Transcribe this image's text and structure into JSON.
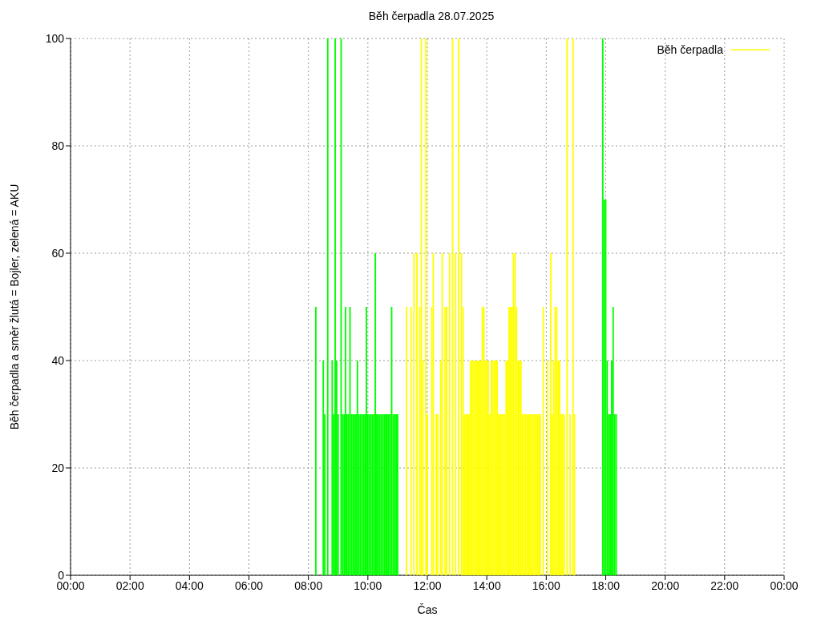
{
  "chart_data": {
    "type": "bar",
    "title": "Běh čerpadla 28.07.2025",
    "xlabel": "Čas",
    "ylabel": "Běh čerpadla a směr žlutá = Bojler, zelená = AKU",
    "xlim": [
      0,
      24
    ],
    "xticks": [
      {
        "value": 0,
        "label": "00:00"
      },
      {
        "value": 2,
        "label": "02:00"
      },
      {
        "value": 4,
        "label": "04:00"
      },
      {
        "value": 6,
        "label": "06:00"
      },
      {
        "value": 8,
        "label": "08:00"
      },
      {
        "value": 10,
        "label": "10:00"
      },
      {
        "value": 12,
        "label": "12:00"
      },
      {
        "value": 14,
        "label": "14:00"
      },
      {
        "value": 16,
        "label": "16:00"
      },
      {
        "value": 18,
        "label": "18:00"
      },
      {
        "value": 20,
        "label": "20:00"
      },
      {
        "value": 22,
        "label": "22:00"
      },
      {
        "value": 24,
        "label": "00:00"
      }
    ],
    "ylim": [
      0,
      100
    ],
    "yticks": [
      0,
      20,
      40,
      60,
      80,
      100
    ],
    "grid": true,
    "legend": "top right",
    "series": [
      {
        "name": "Běh čerpadla",
        "color": "#ffff00",
        "x": [
          8.25,
          8.5,
          8.55,
          8.65,
          8.8,
          8.85,
          8.9,
          8.95,
          9,
          9.1,
          9.15,
          9.2,
          9.25,
          9.3,
          9.35,
          9.4,
          9.45,
          9.5,
          9.55,
          9.6,
          9.65,
          9.7,
          9.75,
          9.8,
          9.85,
          9.9,
          9.95,
          10,
          10.05,
          10.1,
          10.15,
          10.2,
          10.25,
          10.3,
          10.35,
          10.4,
          10.45,
          10.5,
          10.55,
          10.6,
          10.65,
          10.7,
          10.75,
          10.8,
          10.85,
          10.9,
          10.95,
          11,
          11.3,
          11.45,
          11.55,
          11.65,
          11.75,
          11.8,
          11.85,
          11.95,
          12,
          12.15,
          12.2,
          12.3,
          12.35,
          12.45,
          12.5,
          12.6,
          12.65,
          12.75,
          12.85,
          12.95,
          13.05,
          13.15,
          13.2,
          13.25,
          13.3,
          13.35,
          13.4,
          13.45,
          13.5,
          13.55,
          13.6,
          13.65,
          13.7,
          13.75,
          13.8,
          13.85,
          13.9,
          13.95,
          14,
          14.05,
          14.1,
          14.15,
          14.2,
          14.25,
          14.3,
          14.35,
          14.4,
          14.45,
          14.5,
          14.55,
          14.6,
          14.65,
          14.7,
          14.75,
          14.8,
          14.85,
          14.9,
          14.95,
          15,
          15.05,
          15.1,
          15.15,
          15.2,
          15.25,
          15.3,
          15.35,
          15.4,
          15.45,
          15.5,
          15.55,
          15.6,
          15.65,
          15.7,
          15.75,
          15.8,
          15.9,
          16.05,
          16.15,
          16.2,
          16.25,
          16.3,
          16.35,
          16.4,
          16.45,
          16.5,
          16.55,
          16.6,
          16.7,
          16.8,
          16.9,
          16.95,
          17.9,
          17.95,
          18,
          18.05,
          18.1,
          18.15,
          18.2,
          18.25,
          18.3,
          18.35
        ],
        "values": [
          50,
          40,
          30,
          100,
          40,
          30,
          100,
          40,
          30,
          100,
          30,
          30,
          50,
          30,
          30,
          50,
          30,
          30,
          30,
          30,
          40,
          30,
          30,
          30,
          30,
          30,
          50,
          30,
          30,
          30,
          30,
          30,
          60,
          30,
          30,
          30,
          30,
          30,
          30,
          30,
          30,
          30,
          30,
          50,
          30,
          30,
          30,
          30,
          50,
          50,
          60,
          60,
          50,
          100,
          40,
          100,
          30,
          50,
          60,
          30,
          30,
          40,
          60,
          50,
          50,
          60,
          100,
          60,
          100,
          60,
          50,
          30,
          30,
          30,
          30,
          40,
          40,
          40,
          40,
          40,
          40,
          40,
          40,
          50,
          50,
          40,
          40,
          40,
          30,
          40,
          40,
          40,
          40,
          40,
          30,
          30,
          30,
          30,
          30,
          40,
          40,
          50,
          50,
          50,
          60,
          60,
          50,
          40,
          40,
          40,
          30,
          30,
          30,
          30,
          30,
          30,
          30,
          30,
          30,
          30,
          30,
          30,
          30,
          50,
          40,
          60,
          30,
          40,
          50,
          50,
          40,
          40,
          30,
          30,
          30,
          100,
          30,
          100,
          30,
          100,
          70,
          70,
          40,
          30,
          30,
          40,
          50,
          30,
          30
        ],
        "colors": [
          "#00ff00",
          "#00ff00",
          "#00ff00",
          "#00ff00",
          "#00ff00",
          "#00ff00",
          "#00ff00",
          "#00ff00",
          "#00ff00",
          "#00ff00",
          "#00ff00",
          "#00ff00",
          "#00ff00",
          "#00ff00",
          "#00ff00",
          "#00ff00",
          "#00ff00",
          "#00ff00",
          "#00ff00",
          "#00ff00",
          "#00ff00",
          "#00ff00",
          "#00ff00",
          "#00ff00",
          "#00ff00",
          "#00ff00",
          "#00ff00",
          "#00ff00",
          "#00ff00",
          "#00ff00",
          "#00ff00",
          "#00ff00",
          "#00ff00",
          "#00ff00",
          "#00ff00",
          "#00ff00",
          "#00ff00",
          "#00ff00",
          "#00ff00",
          "#00ff00",
          "#00ff00",
          "#00ff00",
          "#00ff00",
          "#00ff00",
          "#00ff00",
          "#00ff00",
          "#00ff00",
          "#00ff00",
          "#ffff00",
          "#ffff00",
          "#ffff00",
          "#ffff00",
          "#ffff00",
          "#ffff00",
          "#ffff00",
          "#ffff00",
          "#ffff00",
          "#ffff00",
          "#ffff00",
          "#ffff00",
          "#ffff00",
          "#ffff00",
          "#ffff00",
          "#ffff00",
          "#ffff00",
          "#ffff00",
          "#ffff00",
          "#ffff00",
          "#ffff00",
          "#ffff00",
          "#ffff00",
          "#ffff00",
          "#ffff00",
          "#ffff00",
          "#ffff00",
          "#ffff00",
          "#ffff00",
          "#ffff00",
          "#ffff00",
          "#ffff00",
          "#ffff00",
          "#ffff00",
          "#ffff00",
          "#ffff00",
          "#ffff00",
          "#ffff00",
          "#ffff00",
          "#ffff00",
          "#ffff00",
          "#ffff00",
          "#ffff00",
          "#ffff00",
          "#ffff00",
          "#ffff00",
          "#ffff00",
          "#ffff00",
          "#ffff00",
          "#ffff00",
          "#ffff00",
          "#ffff00",
          "#ffff00",
          "#ffff00",
          "#ffff00",
          "#ffff00",
          "#ffff00",
          "#ffff00",
          "#ffff00",
          "#ffff00",
          "#ffff00",
          "#ffff00",
          "#ffff00",
          "#ffff00",
          "#ffff00",
          "#ffff00",
          "#ffff00",
          "#ffff00",
          "#ffff00",
          "#ffff00",
          "#ffff00",
          "#ffff00",
          "#ffff00",
          "#ffff00",
          "#ffff00",
          "#ffff00",
          "#ffff00",
          "#ffff00",
          "#ffff00",
          "#ffff00",
          "#ffff00",
          "#ffff00",
          "#ffff00",
          "#ffff00",
          "#ffff00",
          "#ffff00",
          "#ffff00",
          "#ffff00",
          "#ffff00",
          "#ffff00",
          "#ffff00",
          "#00ff00",
          "#00ff00",
          "#00ff00",
          "#00ff00",
          "#00ff00",
          "#00ff00",
          "#00ff00",
          "#00ff00",
          "#00ff00",
          "#00ff00"
        ]
      }
    ]
  }
}
